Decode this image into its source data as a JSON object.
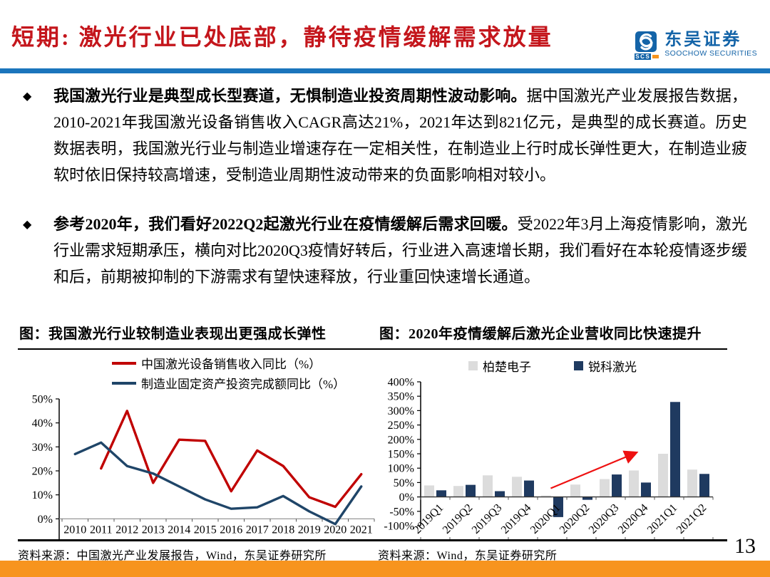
{
  "header": {
    "title": "短期: 激光行业已处底部，静待疫情缓解需求放量",
    "logo": {
      "abbr": "SCS",
      "cn": "东吴证券",
      "en": "SOOCHOW SECURITIES"
    }
  },
  "bullet_marker": "◆",
  "bullets": [
    {
      "lead": "我国激光行业是典型成长型赛道，无惧制造业投资周期性波动影响。",
      "body": "据中国激光产业发展报告数据，2010-2021年我国激光设备销售收入CAGR高达21%，2021年达到821亿元，是典型的成长赛道。历史数据表明，我国激光行业与制造业增速存在一定相关性，在制造业上行时成长弹性更大，在制造业疲软时依旧保持较高增速，受制造业周期性波动带来的负面影响相对较小。"
    },
    {
      "lead": "参考2020年，我们看好2022Q2起激光行业在疫情缓解后需求回暖。",
      "body": "受2022年3月上海疫情影响，激光行业需求短期承压，横向对比2020Q3疫情好转后，行业进入高速增长期，我们看好在本轮疫情逐步缓和后，前期被抑制的下游需求有望快速释放，行业重回快速增长通道。"
    }
  ],
  "figures": [
    {
      "title": "图：我国激光行业较制造业表现出更强成长弹性",
      "source": "资料来源：中国激光产业发展报告，Wind，东吴证券研究所"
    },
    {
      "title": "图：2020年疫情缓解后激光企业营收同比快速提升",
      "source": "资料来源：Wind，东吴证券研究所"
    }
  ],
  "page_number": "13",
  "colors": {
    "title_red": "#C4161C",
    "divider_blue": "#1B75BC",
    "logo_blue": "#1464A8",
    "footer_orange": "#F7941E",
    "axis_black": "#000000",
    "zero_line_gray": "#8C8C8C"
  },
  "chart_data": [
    {
      "type": "line",
      "title": "图：我国激光行业较制造业表现出更强成长弹性",
      "categories": [
        "2010",
        "2011",
        "2012",
        "2013",
        "2014",
        "2015",
        "2016",
        "2017",
        "2018",
        "2019",
        "2020",
        "2021"
      ],
      "series": [
        {
          "name": "中国激光设备销售收入同比（%）",
          "color": "#C00000",
          "values": [
            null,
            21,
            45,
            15,
            33,
            32.5,
            11.5,
            28.5,
            22,
            9,
            5,
            18.6
          ]
        },
        {
          "name": "制造业固定资产投资完成额同比（%）",
          "color": "#1F4568",
          "values": [
            27,
            31.8,
            22,
            18.9,
            13.5,
            8.1,
            4.2,
            4.8,
            9.5,
            3.1,
            -2.2,
            13.5
          ]
        }
      ],
      "ylim": [
        -10,
        50
      ],
      "ytick_step": 10,
      "ytick_suffix": "%",
      "legend_position": "top",
      "grid": false
    },
    {
      "type": "bar",
      "title": "图：2020年疫情缓解后激光企业营收同比快速提升",
      "categories": [
        "2019Q1",
        "2019Q2",
        "2019Q3",
        "2019Q4",
        "2020Q1",
        "2020Q2",
        "2020Q3",
        "2020Q4",
        "2021Q1",
        "2021Q2"
      ],
      "series": [
        {
          "name": "柏楚电子",
          "color": "#DCDCDC",
          "values": [
            40,
            38,
            75,
            70,
            5,
            43,
            62,
            92,
            150,
            95
          ]
        },
        {
          "name": "锐科激光",
          "color": "#1F3A60",
          "values": [
            23,
            42,
            20,
            57,
            -70,
            -10,
            78,
            50,
            330,
            80
          ]
        }
      ],
      "ylim": [
        -100,
        400
      ],
      "ytick_step": 50,
      "ytick_suffix": "%",
      "legend_position": "top",
      "grid": false,
      "annotation_arrow": {
        "from_index": 3.95,
        "from_value": 30,
        "to_index": 6.9,
        "to_value": 155,
        "color": "#EE1111"
      }
    }
  ]
}
